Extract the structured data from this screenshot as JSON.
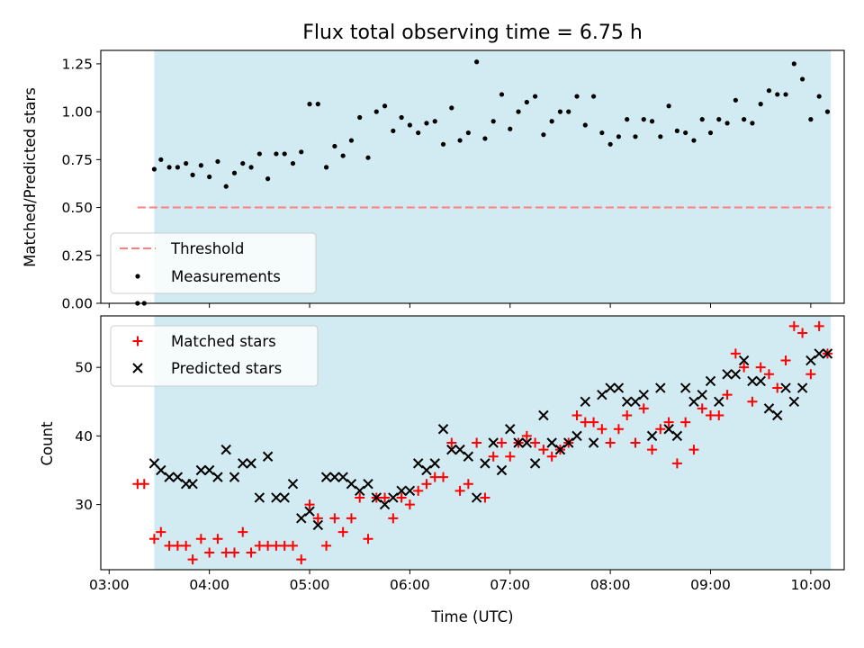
{
  "chart_data": [
    {
      "type": "scatter",
      "title": "Flux total observing time = 6.75 h",
      "ylabel": "Matched/Predicted stars",
      "xlabel": "",
      "xlim": [
        "03:00",
        "10:20"
      ],
      "ylim": [
        0,
        1.32
      ],
      "yticks": [
        "0.00",
        "0.25",
        "0.50",
        "0.75",
        "1.00",
        "1.25"
      ],
      "shaded_region": {
        "start": "03:27",
        "end": "10:12",
        "color": "#add8e6"
      },
      "threshold": {
        "name": "Threshold",
        "value": 0.5,
        "color": "#ff7f7f",
        "style": "dashed",
        "start": "03:17",
        "end": "10:12"
      },
      "legend": {
        "position": "lower-left",
        "entries": [
          "Threshold",
          "Measurements"
        ]
      },
      "series": [
        {
          "name": "Measurements",
          "color": "#000000",
          "marker": "dot",
          "points": [
            [
              "03:17",
              0.0
            ],
            [
              "03:21",
              0.0
            ],
            [
              "03:27",
              0.7
            ],
            [
              "03:31",
              0.75
            ],
            [
              "03:36",
              0.71
            ],
            [
              "03:41",
              0.71
            ],
            [
              "03:46",
              0.73
            ],
            [
              "03:50",
              0.67
            ],
            [
              "03:55",
              0.72
            ],
            [
              "04:00",
              0.66
            ],
            [
              "04:05",
              0.74
            ],
            [
              "04:10",
              0.61
            ],
            [
              "04:15",
              0.68
            ],
            [
              "04:20",
              0.73
            ],
            [
              "04:25",
              0.71
            ],
            [
              "04:30",
              0.78
            ],
            [
              "04:35",
              0.65
            ],
            [
              "04:40",
              0.78
            ],
            [
              "04:45",
              0.78
            ],
            [
              "04:50",
              0.73
            ],
            [
              "04:55",
              0.79
            ],
            [
              "05:00",
              1.04
            ],
            [
              "05:05",
              1.04
            ],
            [
              "05:10",
              0.71
            ],
            [
              "05:15",
              0.82
            ],
            [
              "05:20",
              0.77
            ],
            [
              "05:25",
              0.85
            ],
            [
              "05:30",
              0.97
            ],
            [
              "05:35",
              0.76
            ],
            [
              "05:40",
              1.0
            ],
            [
              "05:45",
              1.03
            ],
            [
              "05:50",
              0.9
            ],
            [
              "05:55",
              0.97
            ],
            [
              "06:00",
              0.93
            ],
            [
              "06:05",
              0.89
            ],
            [
              "06:10",
              0.94
            ],
            [
              "06:15",
              0.95
            ],
            [
              "06:20",
              0.83
            ],
            [
              "06:25",
              1.02
            ],
            [
              "06:30",
              0.85
            ],
            [
              "06:35",
              0.89
            ],
            [
              "06:40",
              1.26
            ],
            [
              "06:45",
              0.86
            ],
            [
              "06:50",
              0.95
            ],
            [
              "06:55",
              1.09
            ],
            [
              "07:00",
              0.91
            ],
            [
              "07:05",
              1.0
            ],
            [
              "07:10",
              1.05
            ],
            [
              "07:15",
              1.08
            ],
            [
              "07:20",
              0.88
            ],
            [
              "07:25",
              0.95
            ],
            [
              "07:30",
              1.0
            ],
            [
              "07:35",
              1.0
            ],
            [
              "07:40",
              1.08
            ],
            [
              "07:45",
              0.93
            ],
            [
              "07:50",
              1.08
            ],
            [
              "07:55",
              0.89
            ],
            [
              "08:00",
              0.83
            ],
            [
              "08:05",
              0.87
            ],
            [
              "08:10",
              0.96
            ],
            [
              "08:15",
              0.87
            ],
            [
              "08:20",
              0.96
            ],
            [
              "08:25",
              0.95
            ],
            [
              "08:30",
              0.87
            ],
            [
              "08:35",
              1.03
            ],
            [
              "08:40",
              0.9
            ],
            [
              "08:45",
              0.89
            ],
            [
              "08:50",
              0.85
            ],
            [
              "08:55",
              0.96
            ],
            [
              "09:00",
              0.89
            ],
            [
              "09:05",
              0.96
            ],
            [
              "09:10",
              0.94
            ],
            [
              "09:15",
              1.06
            ],
            [
              "09:20",
              0.96
            ],
            [
              "09:25",
              0.94
            ],
            [
              "09:30",
              1.04
            ],
            [
              "09:35",
              1.11
            ],
            [
              "09:40",
              1.09
            ],
            [
              "09:45",
              1.09
            ],
            [
              "09:50",
              1.25
            ],
            [
              "09:55",
              1.17
            ],
            [
              "10:00",
              0.96
            ],
            [
              "10:05",
              1.08
            ],
            [
              "10:10",
              1.0
            ]
          ]
        }
      ]
    },
    {
      "type": "scatter",
      "title": "",
      "xlabel": "Time (UTC)",
      "ylabel": "Count",
      "xlim": [
        "03:00",
        "10:20"
      ],
      "ylim": [
        20.5,
        57.5
      ],
      "xticks": [
        "03:00",
        "04:00",
        "05:00",
        "06:00",
        "07:00",
        "08:00",
        "09:00",
        "10:00"
      ],
      "yticks": [
        "30",
        "40",
        "50"
      ],
      "shaded_region": {
        "start": "03:27",
        "end": "10:12",
        "color": "#add8e6"
      },
      "legend": {
        "position": "top-left",
        "entries": [
          "Matched stars",
          "Predicted stars"
        ]
      },
      "series": [
        {
          "name": "Matched stars",
          "color": "#ff0000",
          "marker": "plus",
          "points": [
            [
              "03:17",
              33
            ],
            [
              "03:21",
              33
            ],
            [
              "03:27",
              25
            ],
            [
              "03:31",
              26
            ],
            [
              "03:36",
              24
            ],
            [
              "03:41",
              24
            ],
            [
              "03:46",
              24
            ],
            [
              "03:50",
              22
            ],
            [
              "03:55",
              25
            ],
            [
              "04:00",
              23
            ],
            [
              "04:05",
              25
            ],
            [
              "04:10",
              23
            ],
            [
              "04:15",
              23
            ],
            [
              "04:20",
              26
            ],
            [
              "04:25",
              23
            ],
            [
              "04:30",
              24
            ],
            [
              "04:35",
              24
            ],
            [
              "04:40",
              24
            ],
            [
              "04:45",
              24
            ],
            [
              "04:50",
              24
            ],
            [
              "04:55",
              22
            ],
            [
              "05:00",
              30
            ],
            [
              "05:05",
              28
            ],
            [
              "05:10",
              24
            ],
            [
              "05:15",
              28
            ],
            [
              "05:20",
              26
            ],
            [
              "05:25",
              28
            ],
            [
              "05:30",
              31
            ],
            [
              "05:35",
              25
            ],
            [
              "05:40",
              31
            ],
            [
              "05:45",
              31
            ],
            [
              "05:50",
              28
            ],
            [
              "05:55",
              31
            ],
            [
              "06:00",
              30
            ],
            [
              "06:05",
              32
            ],
            [
              "06:10",
              33
            ],
            [
              "06:15",
              34
            ],
            [
              "06:20",
              34
            ],
            [
              "06:25",
              39
            ],
            [
              "06:30",
              32
            ],
            [
              "06:35",
              33
            ],
            [
              "06:40",
              39
            ],
            [
              "06:45",
              31
            ],
            [
              "06:50",
              37
            ],
            [
              "06:55",
              39
            ],
            [
              "07:00",
              37
            ],
            [
              "07:05",
              39
            ],
            [
              "07:10",
              40
            ],
            [
              "07:15",
              39
            ],
            [
              "07:20",
              38
            ],
            [
              "07:25",
              37
            ],
            [
              "07:30",
              38
            ],
            [
              "07:35",
              39
            ],
            [
              "07:40",
              43
            ],
            [
              "07:45",
              42
            ],
            [
              "07:50",
              42
            ],
            [
              "07:55",
              41
            ],
            [
              "08:00",
              39
            ],
            [
              "08:05",
              41
            ],
            [
              "08:10",
              43
            ],
            [
              "08:15",
              39
            ],
            [
              "08:20",
              44
            ],
            [
              "08:25",
              38
            ],
            [
              "08:30",
              41
            ],
            [
              "08:35",
              42
            ],
            [
              "08:40",
              36
            ],
            [
              "08:45",
              42
            ],
            [
              "08:50",
              38
            ],
            [
              "08:55",
              44
            ],
            [
              "09:00",
              43
            ],
            [
              "09:05",
              43
            ],
            [
              "09:10",
              46
            ],
            [
              "09:15",
              52
            ],
            [
              "09:20",
              50
            ],
            [
              "09:25",
              45
            ],
            [
              "09:30",
              50
            ],
            [
              "09:35",
              49
            ],
            [
              "09:40",
              47
            ],
            [
              "09:45",
              51
            ],
            [
              "09:50",
              56
            ],
            [
              "09:55",
              55
            ],
            [
              "10:00",
              49
            ],
            [
              "10:05",
              56
            ],
            [
              "10:10",
              52
            ]
          ]
        },
        {
          "name": "Predicted stars",
          "color": "#000000",
          "marker": "x",
          "points": [
            [
              "03:27",
              36
            ],
            [
              "03:31",
              35
            ],
            [
              "03:36",
              34
            ],
            [
              "03:41",
              34
            ],
            [
              "03:46",
              33
            ],
            [
              "03:50",
              33
            ],
            [
              "03:55",
              35
            ],
            [
              "04:00",
              35
            ],
            [
              "04:05",
              34
            ],
            [
              "04:10",
              38
            ],
            [
              "04:15",
              34
            ],
            [
              "04:20",
              36
            ],
            [
              "04:25",
              36
            ],
            [
              "04:30",
              31
            ],
            [
              "04:35",
              37
            ],
            [
              "04:40",
              31
            ],
            [
              "04:45",
              31
            ],
            [
              "04:50",
              33
            ],
            [
              "04:55",
              28
            ],
            [
              "05:00",
              29
            ],
            [
              "05:05",
              27
            ],
            [
              "05:10",
              34
            ],
            [
              "05:15",
              34
            ],
            [
              "05:20",
              34
            ],
            [
              "05:25",
              33
            ],
            [
              "05:30",
              32
            ],
            [
              "05:35",
              33
            ],
            [
              "05:40",
              31
            ],
            [
              "05:45",
              30
            ],
            [
              "05:50",
              31
            ],
            [
              "05:55",
              32
            ],
            [
              "06:00",
              32
            ],
            [
              "06:05",
              36
            ],
            [
              "06:10",
              35
            ],
            [
              "06:15",
              36
            ],
            [
              "06:20",
              41
            ],
            [
              "06:25",
              38
            ],
            [
              "06:30",
              38
            ],
            [
              "06:35",
              37
            ],
            [
              "06:40",
              31
            ],
            [
              "06:45",
              36
            ],
            [
              "06:50",
              39
            ],
            [
              "06:55",
              35
            ],
            [
              "07:00",
              41
            ],
            [
              "07:05",
              39
            ],
            [
              "07:10",
              39
            ],
            [
              "07:15",
              36
            ],
            [
              "07:20",
              43
            ],
            [
              "07:25",
              39
            ],
            [
              "07:30",
              38
            ],
            [
              "07:35",
              39
            ],
            [
              "07:40",
              40
            ],
            [
              "07:45",
              45
            ],
            [
              "07:50",
              39
            ],
            [
              "07:55",
              46
            ],
            [
              "08:00",
              47
            ],
            [
              "08:05",
              47
            ],
            [
              "08:10",
              45
            ],
            [
              "08:15",
              45
            ],
            [
              "08:20",
              46
            ],
            [
              "08:25",
              40
            ],
            [
              "08:30",
              47
            ],
            [
              "08:35",
              41
            ],
            [
              "08:40",
              40
            ],
            [
              "08:45",
              47
            ],
            [
              "08:50",
              45
            ],
            [
              "08:55",
              46
            ],
            [
              "09:00",
              48
            ],
            [
              "09:05",
              45
            ],
            [
              "09:10",
              49
            ],
            [
              "09:15",
              49
            ],
            [
              "09:20",
              51
            ],
            [
              "09:25",
              48
            ],
            [
              "09:30",
              48
            ],
            [
              "09:35",
              44
            ],
            [
              "09:40",
              43
            ],
            [
              "09:45",
              47
            ],
            [
              "09:50",
              45
            ],
            [
              "09:55",
              47
            ],
            [
              "10:00",
              51
            ],
            [
              "10:05",
              52
            ],
            [
              "10:10",
              52
            ]
          ]
        }
      ]
    }
  ]
}
